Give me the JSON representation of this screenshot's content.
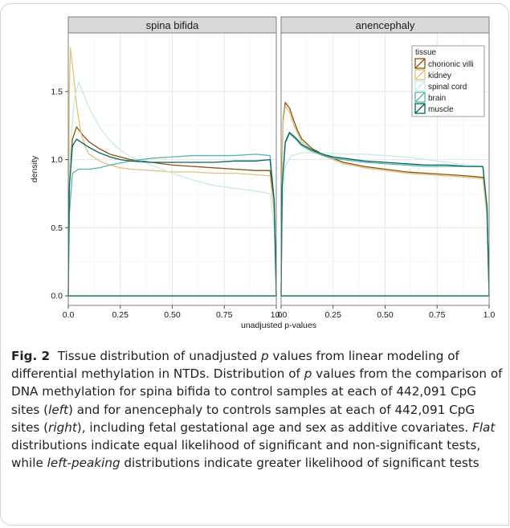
{
  "chart_data": {
    "type": "line",
    "xlabel": "unadjusted p-values",
    "ylabel": "density",
    "xlim": [
      0,
      1
    ],
    "ylim": [
      -0.07,
      1.93
    ],
    "x_ticks": [
      "0.0",
      "0.25",
      "0.50",
      "0.75",
      "1.0"
    ],
    "x_tick_values": [
      0,
      0.25,
      0.5,
      0.75,
      1.0
    ],
    "y_ticks": [
      "0.0",
      "0.5",
      "1.0",
      "1.5"
    ],
    "y_tick_values": [
      0,
      0.5,
      1.0,
      1.5
    ],
    "grid": true,
    "legend": {
      "title": "tissue",
      "placement": "top-right",
      "entries": [
        "chorionic villi",
        "kidney",
        "spinal cord",
        "brain",
        "muscle"
      ]
    },
    "colors": {
      "chorionic villi": "#8c510a",
      "kidney": "#dfc27d",
      "spinal cord": "#c7eae5",
      "brain": "#5ab4ac",
      "muscle": "#01665e"
    },
    "panels": [
      {
        "title": "spina bifida",
        "series": [
          {
            "name": "chorionic villi",
            "x": [
              0.0,
              0.005,
              0.02,
              0.04,
              0.07,
              0.1,
              0.15,
              0.2,
              0.25,
              0.3,
              0.4,
              0.5,
              0.6,
              0.7,
              0.8,
              0.9,
              0.97,
              0.99,
              1.0
            ],
            "y": [
              0.0,
              0.8,
              1.15,
              1.24,
              1.18,
              1.13,
              1.08,
              1.04,
              1.02,
              1.0,
              0.98,
              0.96,
              0.95,
              0.94,
              0.93,
              0.92,
              0.92,
              0.7,
              0.0
            ]
          },
          {
            "name": "kidney",
            "x": [
              0.0,
              0.005,
              0.01,
              0.02,
              0.04,
              0.06,
              0.08,
              0.1,
              0.15,
              0.2,
              0.25,
              0.3,
              0.4,
              0.5,
              0.6,
              0.7,
              0.8,
              0.9,
              0.97,
              0.99,
              1.0
            ],
            "y": [
              0.0,
              1.5,
              1.82,
              1.7,
              1.4,
              1.2,
              1.1,
              1.04,
              0.99,
              0.96,
              0.94,
              0.93,
              0.92,
              0.91,
              0.91,
              0.9,
              0.9,
              0.89,
              0.88,
              0.6,
              0.0
            ]
          },
          {
            "name": "spinal cord",
            "x": [
              0.0,
              0.005,
              0.01,
              0.03,
              0.05,
              0.08,
              0.1,
              0.15,
              0.2,
              0.25,
              0.3,
              0.4,
              0.5,
              0.6,
              0.7,
              0.8,
              0.9,
              0.97,
              0.99,
              1.0
            ],
            "y": [
              0.0,
              0.6,
              1.1,
              1.45,
              1.57,
              1.46,
              1.38,
              1.24,
              1.14,
              1.07,
              1.02,
              0.96,
              0.9,
              0.85,
              0.81,
              0.79,
              0.77,
              0.75,
              0.5,
              0.0
            ]
          },
          {
            "name": "brain",
            "x": [
              0.0,
              0.005,
              0.02,
              0.05,
              0.1,
              0.15,
              0.2,
              0.3,
              0.4,
              0.5,
              0.6,
              0.7,
              0.8,
              0.9,
              0.97,
              0.99,
              1.0
            ],
            "y": [
              0.0,
              0.6,
              0.9,
              0.93,
              0.93,
              0.94,
              0.96,
              0.99,
              1.01,
              1.02,
              1.03,
              1.03,
              1.03,
              1.04,
              1.03,
              0.7,
              0.0
            ]
          },
          {
            "name": "muscle",
            "x": [
              0.0,
              0.005,
              0.02,
              0.04,
              0.07,
              0.1,
              0.15,
              0.2,
              0.25,
              0.3,
              0.4,
              0.5,
              0.6,
              0.7,
              0.8,
              0.9,
              0.97,
              0.99,
              1.0
            ],
            "y": [
              0.0,
              0.8,
              1.1,
              1.15,
              1.12,
              1.09,
              1.05,
              1.02,
              1.0,
              0.99,
              0.98,
              0.98,
              0.98,
              0.98,
              0.99,
              0.99,
              1.0,
              0.7,
              0.0
            ]
          }
        ]
      },
      {
        "title": "anencephaly",
        "series": [
          {
            "name": "chorionic villi",
            "x": [
              0.0,
              0.005,
              0.01,
              0.02,
              0.04,
              0.06,
              0.08,
              0.1,
              0.15,
              0.2,
              0.25,
              0.3,
              0.4,
              0.5,
              0.6,
              0.7,
              0.8,
              0.9,
              0.97,
              0.99,
              1.0
            ],
            "y": [
              0.0,
              1.0,
              1.3,
              1.42,
              1.38,
              1.29,
              1.21,
              1.15,
              1.08,
              1.04,
              1.01,
              0.98,
              0.95,
              0.93,
              0.91,
              0.9,
              0.89,
              0.88,
              0.87,
              0.6,
              0.0
            ]
          },
          {
            "name": "kidney",
            "x": [
              0.0,
              0.005,
              0.01,
              0.02,
              0.04,
              0.06,
              0.08,
              0.1,
              0.15,
              0.2,
              0.25,
              0.3,
              0.4,
              0.5,
              0.6,
              0.7,
              0.8,
              0.9,
              0.97,
              0.99,
              1.0
            ],
            "y": [
              0.0,
              1.0,
              1.28,
              1.39,
              1.35,
              1.26,
              1.19,
              1.13,
              1.07,
              1.03,
              1.0,
              0.97,
              0.94,
              0.92,
              0.9,
              0.89,
              0.88,
              0.87,
              0.86,
              0.6,
              0.0
            ]
          },
          {
            "name": "spinal cord",
            "x": [
              0.0,
              0.005,
              0.02,
              0.05,
              0.1,
              0.2,
              0.3,
              0.4,
              0.5,
              0.6,
              0.7,
              0.8,
              0.9,
              0.97,
              0.99,
              1.0
            ],
            "y": [
              0.0,
              0.6,
              0.95,
              1.03,
              1.05,
              1.05,
              1.04,
              1.04,
              1.03,
              1.02,
              1.0,
              0.98,
              0.96,
              0.95,
              0.65,
              0.0
            ]
          },
          {
            "name": "brain",
            "x": [
              0.0,
              0.005,
              0.02,
              0.04,
              0.07,
              0.1,
              0.15,
              0.2,
              0.25,
              0.3,
              0.4,
              0.5,
              0.6,
              0.7,
              0.8,
              0.9,
              0.97,
              0.99,
              1.0
            ],
            "y": [
              0.0,
              0.8,
              1.12,
              1.19,
              1.15,
              1.1,
              1.06,
              1.03,
              1.01,
              1.0,
              0.98,
              0.97,
              0.96,
              0.95,
              0.95,
              0.95,
              0.95,
              0.65,
              0.0
            ]
          },
          {
            "name": "muscle",
            "x": [
              0.0,
              0.005,
              0.02,
              0.04,
              0.07,
              0.1,
              0.15,
              0.2,
              0.25,
              0.3,
              0.4,
              0.5,
              0.6,
              0.7,
              0.8,
              0.9,
              0.97,
              0.99,
              1.0
            ],
            "y": [
              0.0,
              0.8,
              1.13,
              1.2,
              1.16,
              1.11,
              1.07,
              1.04,
              1.02,
              1.01,
              0.99,
              0.98,
              0.97,
              0.96,
              0.96,
              0.95,
              0.95,
              0.65,
              0.0
            ]
          }
        ]
      }
    ]
  },
  "caption": {
    "fig_label": "Fig. 2",
    "seg1": "Tissue distribution of unadjusted ",
    "p1": "p",
    "seg2": " values from linear modeling of differential methylation in NTDs. Distribution of ",
    "p2": "p",
    "seg3": " values from the comparison of DNA methylation for spina bifida to control samples at each of 442,091 CpG sites (",
    "left": "left",
    "seg4": ") and for anencephaly to controls samples at each of 442,091 CpG sites (",
    "right": "right",
    "seg5": "), including fetal gestational age and sex as additive covariates. ",
    "flat": "Flat",
    "seg6": " distributions indicate equal likelihood of significant and non-significant tests, while ",
    "leftpeak": "left-peaking",
    "seg7": " distributions indicate greater likelihood of significant tests"
  }
}
